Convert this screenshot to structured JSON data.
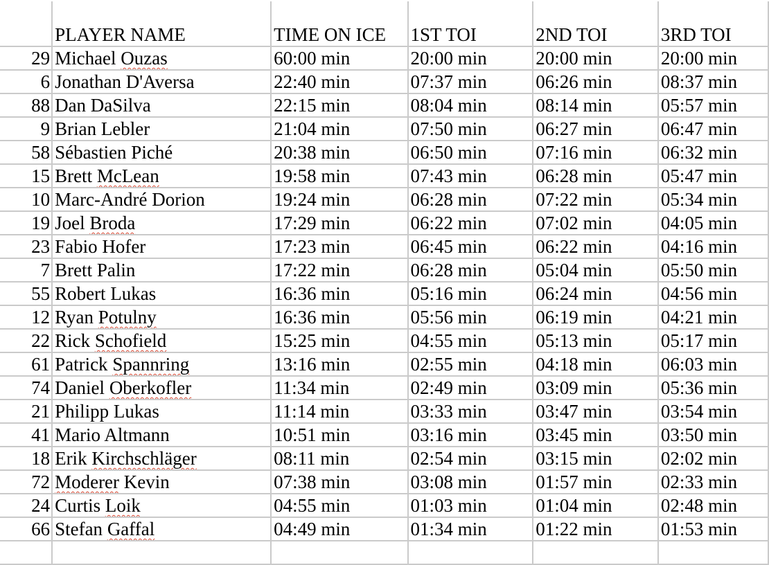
{
  "headers": [
    "",
    "PLAYER NAME",
    "TIME ON ICE",
    "1ST TOI",
    "2ND TOI",
    "3RD TOI"
  ],
  "rows": [
    {
      "number": "29",
      "name": [
        {
          "text": "Michael "
        },
        {
          "text": "Ouzas",
          "flag": true
        }
      ],
      "toi": "60:00 min",
      "p1": "20:00 min",
      "p2": "20:00 min",
      "p3": "20:00 min"
    },
    {
      "number": "6",
      "name": [
        {
          "text": "Jonathan D'Aversa"
        }
      ],
      "toi": "22:40 min",
      "p1": "07:37 min",
      "p2": "06:26 min",
      "p3": "08:37 min"
    },
    {
      "number": "88",
      "name": [
        {
          "text": "Dan DaSilva"
        }
      ],
      "toi": "22:15 min",
      "p1": "08:04 min",
      "p2": "08:14 min",
      "p3": "05:57 min"
    },
    {
      "number": "9",
      "name": [
        {
          "text": "Brian Lebler"
        }
      ],
      "toi": "21:04 min",
      "p1": "07:50 min",
      "p2": "06:27 min",
      "p3": "06:47 min"
    },
    {
      "number": "58",
      "name": [
        {
          "text": "Sébastien Piché"
        }
      ],
      "toi": "20:38 min",
      "p1": "06:50 min",
      "p2": "07:16 min",
      "p3": "06:32 min"
    },
    {
      "number": "15",
      "name": [
        {
          "text": "Brett "
        },
        {
          "text": "McLean",
          "flag": true
        }
      ],
      "toi": "19:58 min",
      "p1": "07:43 min",
      "p2": "06:28 min",
      "p3": "05:47 min"
    },
    {
      "number": "10",
      "name": [
        {
          "text": "Marc-André Dorion"
        }
      ],
      "toi": "19:24 min",
      "p1": "06:28 min",
      "p2": "07:22 min",
      "p3": "05:34 min"
    },
    {
      "number": "19",
      "name": [
        {
          "text": "Joel "
        },
        {
          "text": "Broda",
          "flag": true
        }
      ],
      "toi": "17:29 min",
      "p1": "06:22 min",
      "p2": "07:02 min",
      "p3": "04:05 min"
    },
    {
      "number": "23",
      "name": [
        {
          "text": "Fabio Hofer"
        }
      ],
      "toi": "17:23 min",
      "p1": "06:45 min",
      "p2": "06:22 min",
      "p3": "04:16 min"
    },
    {
      "number": "7",
      "name": [
        {
          "text": "Brett Palin"
        }
      ],
      "toi": "17:22 min",
      "p1": "06:28 min",
      "p2": "05:04 min",
      "p3": "05:50 min"
    },
    {
      "number": "55",
      "name": [
        {
          "text": "Robert Lukas"
        }
      ],
      "toi": "16:36 min",
      "p1": "05:16 min",
      "p2": "06:24 min",
      "p3": "04:56 min"
    },
    {
      "number": "12",
      "name": [
        {
          "text": "Ryan "
        },
        {
          "text": "Potulny",
          "flag": true
        }
      ],
      "toi": "16:36 min",
      "p1": "05:56 min",
      "p2": "06:19 min",
      "p3": "04:21 min"
    },
    {
      "number": "22",
      "name": [
        {
          "text": "Rick "
        },
        {
          "text": "Schofield",
          "flag": true
        }
      ],
      "toi": "15:25 min",
      "p1": "04:55 min",
      "p2": "05:13 min",
      "p3": "05:17 min"
    },
    {
      "number": "61",
      "name": [
        {
          "text": "Patrick "
        },
        {
          "text": "Spannring",
          "flag": true
        }
      ],
      "toi": "13:16 min",
      "p1": "02:55 min",
      "p2": "04:18 min",
      "p3": "06:03 min"
    },
    {
      "number": "74",
      "name": [
        {
          "text": "Daniel "
        },
        {
          "text": "Oberkofler",
          "flag": true
        }
      ],
      "toi": "11:34 min",
      "p1": "02:49 min",
      "p2": "03:09 min",
      "p3": "05:36 min"
    },
    {
      "number": "21",
      "name": [
        {
          "text": "Philipp Lukas"
        }
      ],
      "toi": "11:14 min",
      "p1": "03:33 min",
      "p2": "03:47 min",
      "p3": "03:54 min"
    },
    {
      "number": "41",
      "name": [
        {
          "text": "Mario Altmann"
        }
      ],
      "toi": "10:51 min",
      "p1": "03:16 min",
      "p2": "03:45 min",
      "p3": "03:50 min"
    },
    {
      "number": "18",
      "name": [
        {
          "text": "Erik "
        },
        {
          "text": "Kirchschläger",
          "flag": true
        }
      ],
      "toi": "08:11 min",
      "p1": "02:54 min",
      "p2": "03:15 min",
      "p3": "02:02 min"
    },
    {
      "number": "72",
      "name": [
        {
          "text": "Moderer",
          "flag": true
        },
        {
          "text": " Kevin"
        }
      ],
      "toi": "07:38 min",
      "p1": "03:08 min",
      "p2": "01:57 min",
      "p3": "02:33 min"
    },
    {
      "number": "24",
      "name": [
        {
          "text": "Curtis "
        },
        {
          "text": "Loik",
          "flag": true
        }
      ],
      "toi": "04:55 min",
      "p1": "01:03 min",
      "p2": "01:04 min",
      "p3": "02:48 min"
    },
    {
      "number": "66",
      "name": [
        {
          "text": "Stefan "
        },
        {
          "text": "Gaffal",
          "flag": true
        }
      ],
      "toi": "04:49 min",
      "p1": "01:34 min",
      "p2": "01:22 min",
      "p3": "01:53 min"
    }
  ]
}
